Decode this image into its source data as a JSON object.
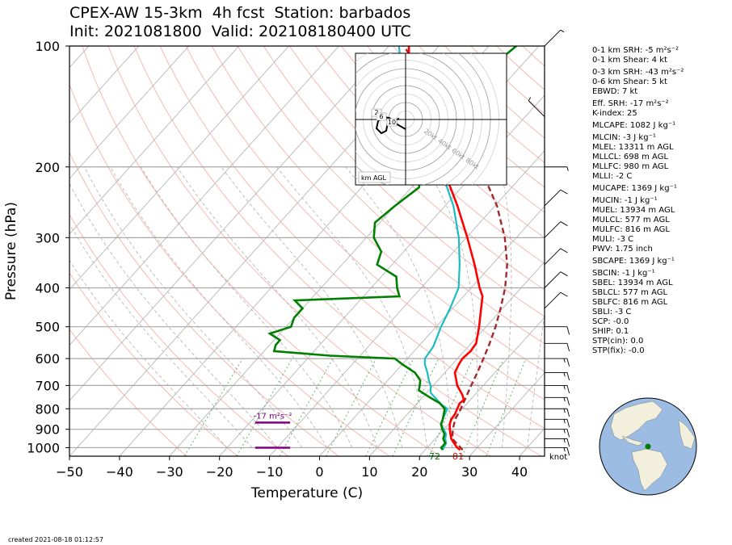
{
  "header": {
    "title_line1": "CPEX-AW 15-3km  4h fcst  Station: barbados",
    "title_line2": "Init: 2021081800  Valid: 202108180400 UTC"
  },
  "footer": {
    "created": "created 2021-08-18 01:12:57"
  },
  "stats": [
    "0-1 km SRH: -5 m²s⁻²",
    "0-1 km Shear: 4 kt",
    "0-3 km SRH: -43 m²s⁻²",
    "0-6 km Shear: 5 kt",
    "EBWD: 7 kt",
    "Eff. SRH: -17 m²s⁻²",
    "K-index: 25",
    "MLCAPE: 1082 J kg⁻¹",
    "MLCIN: -3 J kg⁻¹",
    "MLEL: 13311 m AGL",
    "MLLCL: 698 m AGL",
    "MLLFC: 980 m AGL",
    "MLLI: -2 C",
    "MUCAPE: 1369 J kg⁻¹",
    "MUCIN: -1 J kg⁻¹",
    "MUEL: 13934 m AGL",
    "MULCL: 577 m AGL",
    "MULFC: 816 m AGL",
    "MULI: -3 C",
    "PWV: 1.75 inch",
    "SBCAPE: 1369 J kg⁻¹",
    "SBCIN: -1 J kg⁻¹",
    "SBEL: 13934 m AGL",
    "SBLCL: 577 m AGL",
    "SBLFC: 816 m AGL",
    "SBLI: -3 C",
    "SCP: -0.0",
    "SHIP: 0.1",
    "STP(cin): 0.0",
    "STP(fix): -0.0"
  ],
  "chart_data": {
    "type": "skew-t",
    "xlabel": "Temperature (C)",
    "ylabel": "Pressure (hPa)",
    "xlim": [
      -50,
      45
    ],
    "ylim": [
      1050,
      100
    ],
    "yscale": "log",
    "xticks": [
      -50,
      -40,
      -30,
      -20,
      -10,
      0,
      10,
      20,
      30,
      40
    ],
    "yticks": [
      100,
      200,
      300,
      400,
      500,
      600,
      700,
      800,
      900,
      1000
    ],
    "surface_temp_label": "81",
    "surface_dewpoint_label": "72",
    "eff_srh_label": "-17 m²s⁻²",
    "wind_units_label": "knot",
    "hodograph_rings": [
      "20kt",
      "40kt",
      "60kt",
      "80kt"
    ],
    "hodograph_height_labels": [
      "2",
      "6",
      "10"
    ],
    "hodograph_legend": "km AGL",
    "temperature": [
      [
        1013,
        27
      ],
      [
        1000,
        26
      ],
      [
        975,
        24.6
      ],
      [
        950,
        23.2
      ],
      [
        925,
        22.2
      ],
      [
        900,
        21.2
      ],
      [
        875,
        20.3
      ],
      [
        850,
        19.7
      ],
      [
        825,
        19.5
      ],
      [
        800,
        19
      ],
      [
        775,
        18.5
      ],
      [
        760,
        18.7
      ],
      [
        740,
        17.6
      ],
      [
        700,
        14.8
      ],
      [
        650,
        12
      ],
      [
        620,
        11.3
      ],
      [
        600,
        11
      ],
      [
        575,
        11.3
      ],
      [
        550,
        11
      ],
      [
        500,
        8.6
      ],
      [
        450,
        5.7
      ],
      [
        420,
        3.8
      ],
      [
        400,
        1.7
      ],
      [
        350,
        -3.5
      ],
      [
        300,
        -9.8
      ],
      [
        250,
        -17.5
      ],
      [
        200,
        -27.5
      ],
      [
        150,
        -41
      ],
      [
        125,
        -49
      ],
      [
        100,
        -56
      ]
    ],
    "dewpoint": [
      [
        1013,
        23.5
      ],
      [
        1000,
        23.3
      ],
      [
        975,
        23
      ],
      [
        950,
        22
      ],
      [
        925,
        21.3
      ],
      [
        900,
        20
      ],
      [
        875,
        18.5
      ],
      [
        850,
        18
      ],
      [
        800,
        17
      ],
      [
        780,
        15
      ],
      [
        750,
        12.5
      ],
      [
        730,
        10.8
      ],
      [
        700,
        9.5
      ],
      [
        680,
        8.2
      ],
      [
        650,
        6.5
      ],
      [
        620,
        4.5
      ],
      [
        600,
        3.5
      ],
      [
        560,
        3
      ],
      [
        500,
        1
      ],
      [
        450,
        -0.5
      ],
      [
        400,
        -2.5
      ],
      [
        350,
        -6.5
      ],
      [
        300,
        -11.5
      ],
      [
        250,
        -18.3
      ],
      [
        200,
        -28
      ],
      [
        150,
        -41
      ],
      [
        125,
        -50
      ],
      [
        100,
        -58
      ]
    ],
    "parcel": [
      [
        1013,
        27.5
      ],
      [
        950,
        23.4
      ],
      [
        900,
        21.8
      ],
      [
        850,
        20.5
      ],
      [
        800,
        19.7
      ],
      [
        750,
        18.7
      ],
      [
        700,
        17.6
      ],
      [
        650,
        16.5
      ],
      [
        600,
        15.2
      ],
      [
        550,
        13.7
      ],
      [
        500,
        11.9
      ],
      [
        450,
        9.6
      ],
      [
        400,
        6.8
      ],
      [
        350,
        3
      ],
      [
        300,
        -2.3
      ],
      [
        250,
        -9.6
      ],
      [
        200,
        -20
      ],
      [
        150,
        -35
      ],
      [
        100,
        -57
      ]
    ],
    "dewpoint_green": [
      [
        1013,
        23.5
      ],
      [
        1000,
        22.8
      ],
      [
        975,
        22.8
      ],
      [
        950,
        21.6
      ],
      [
        925,
        21
      ],
      [
        900,
        19.7
      ],
      [
        875,
        18.6
      ],
      [
        850,
        18
      ],
      [
        800,
        16.5
      ],
      [
        775,
        14.5
      ],
      [
        750,
        11.5
      ],
      [
        720,
        8
      ],
      [
        700,
        7.3
      ],
      [
        680,
        6.5
      ],
      [
        650,
        4
      ],
      [
        620,
        0
      ],
      [
        600,
        -2.5
      ],
      [
        590,
        -16
      ],
      [
        575,
        -28
      ],
      [
        555,
        -28.8
      ],
      [
        540,
        -28.8
      ],
      [
        520,
        -32
      ],
      [
        500,
        -29
      ],
      [
        475,
        -30
      ],
      [
        450,
        -30
      ],
      [
        430,
        -33
      ],
      [
        420,
        -12.8
      ],
      [
        400,
        -14.8
      ],
      [
        375,
        -17
      ],
      [
        350,
        -23
      ],
      [
        325,
        -24.5
      ],
      [
        300,
        -28.5
      ],
      [
        275,
        -31
      ],
      [
        250,
        -30
      ],
      [
        225,
        -28.5
      ],
      [
        200,
        -31.5
      ],
      [
        175,
        -35
      ],
      [
        160,
        -33
      ],
      [
        150,
        -34
      ],
      [
        140,
        -37
      ],
      [
        125,
        -37
      ],
      [
        100,
        -34.5
      ]
    ],
    "wind_barbs_kt": [
      [
        1000,
        "E",
        15
      ],
      [
        950,
        "E",
        15
      ],
      [
        900,
        "E",
        15
      ],
      [
        850,
        "E",
        15
      ],
      [
        800,
        "E",
        15
      ],
      [
        750,
        "E",
        15
      ],
      [
        700,
        "E",
        15
      ],
      [
        650,
        "E",
        15
      ],
      [
        600,
        "E",
        15
      ],
      [
        550,
        "E",
        10
      ],
      [
        500,
        "E",
        10
      ],
      [
        450,
        "NE",
        10
      ],
      [
        400,
        "NE",
        10
      ],
      [
        350,
        "NE",
        10
      ],
      [
        300,
        "NE",
        10
      ],
      [
        250,
        "NE",
        10
      ],
      [
        200,
        "E",
        5
      ],
      [
        150,
        "NW",
        5
      ],
      [
        100,
        "NE",
        5
      ]
    ]
  }
}
